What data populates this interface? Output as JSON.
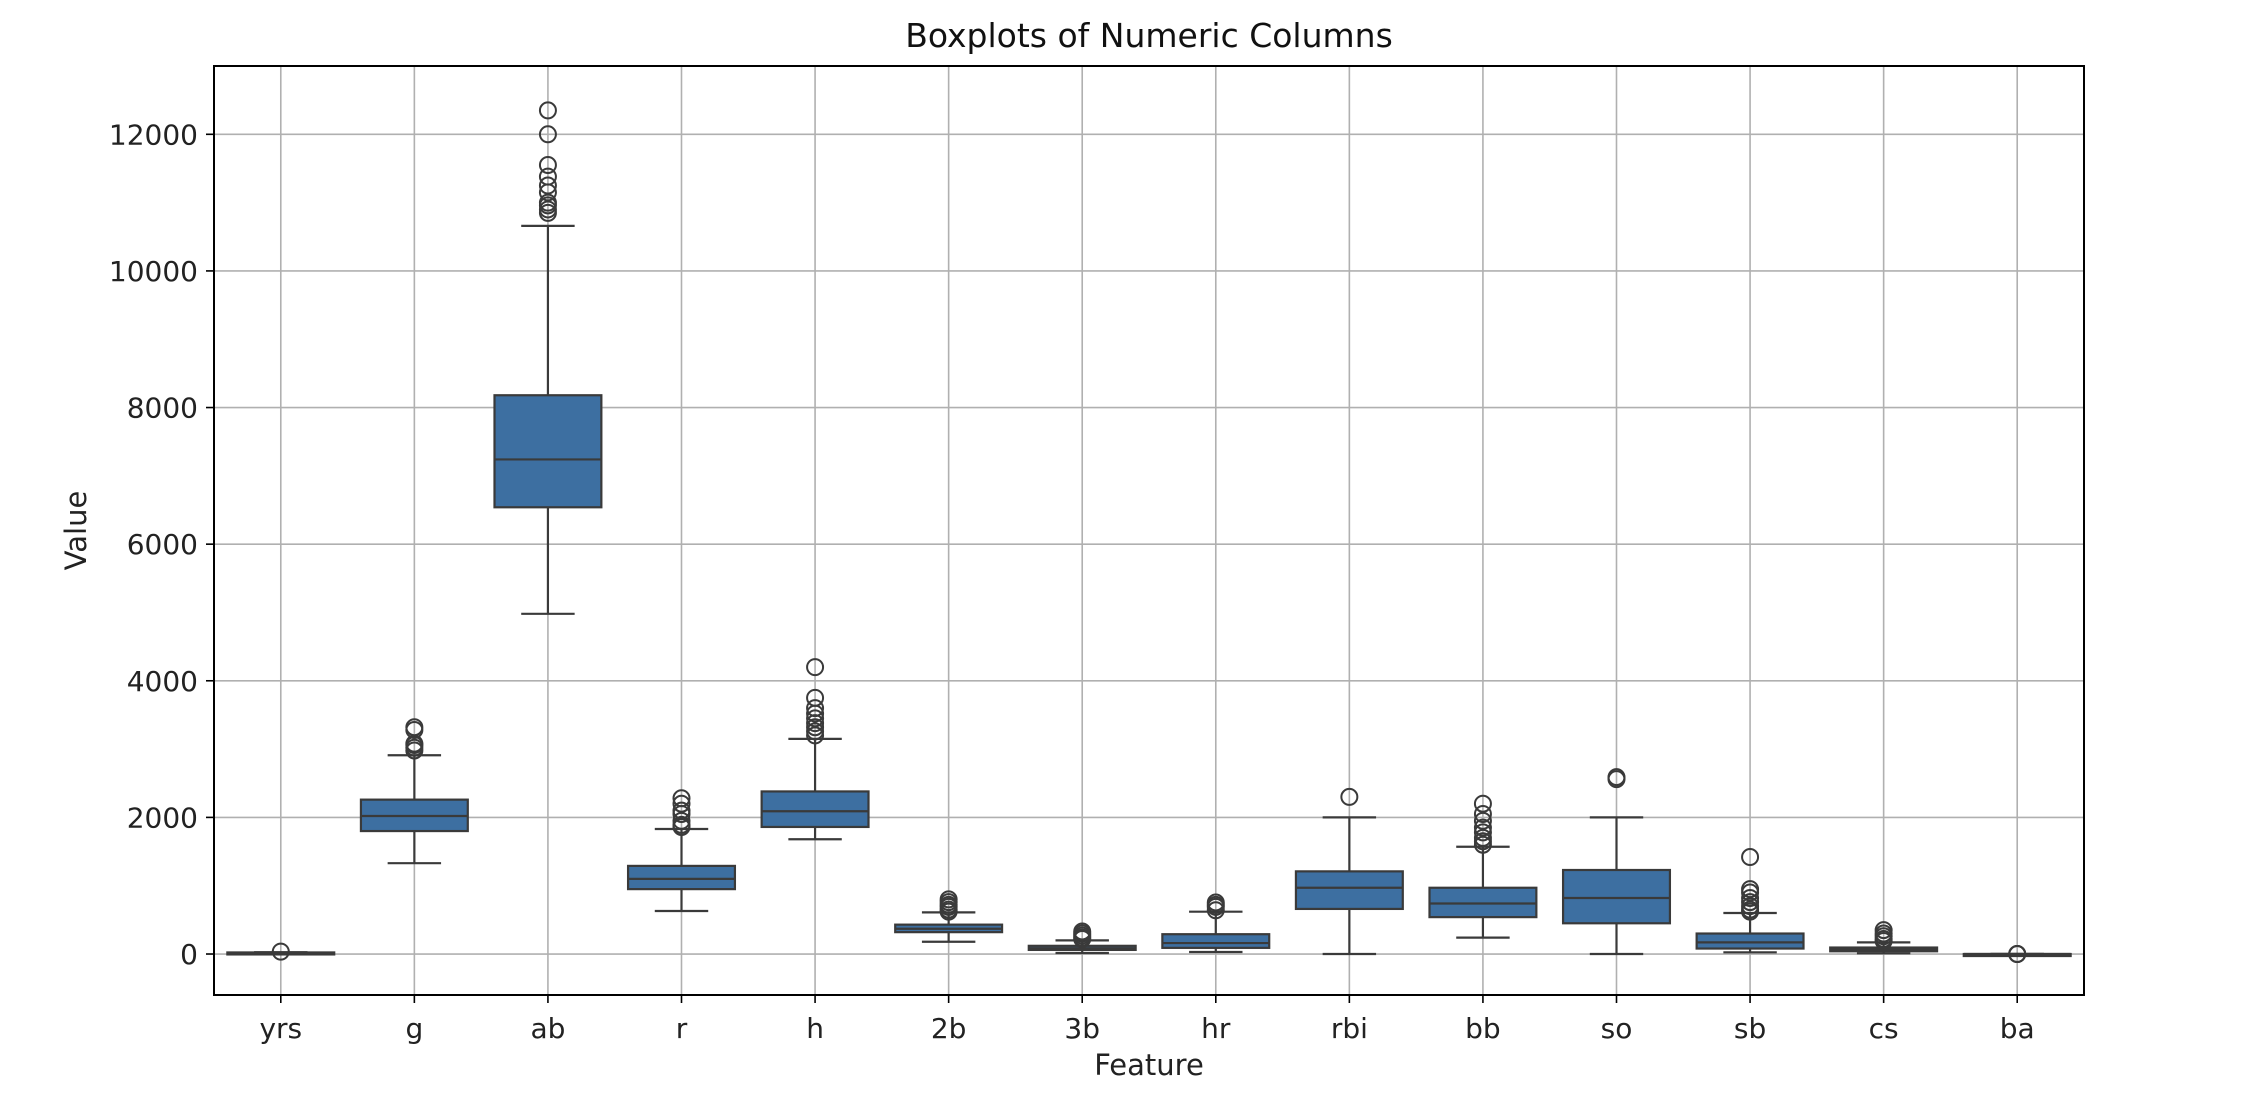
{
  "chart_data": {
    "type": "boxplot",
    "title": "Boxplots of Numeric Columns",
    "xlabel": "Feature",
    "ylabel": "Value",
    "ylim": [
      -600,
      13000
    ],
    "yticks": [
      0,
      2000,
      4000,
      6000,
      8000,
      10000,
      12000
    ],
    "yticklabels": [
      "0",
      "2000",
      "4000",
      "6000",
      "8000",
      "10000",
      "12000"
    ],
    "grid": true,
    "box_color": "#3d6fa1",
    "edge_color": "#3a3a3a",
    "categories": [
      "yrs",
      "g",
      "ab",
      "r",
      "h",
      "2b",
      "3b",
      "hr",
      "rbi",
      "bb",
      "so",
      "sb",
      "cs",
      "ba"
    ],
    "boxes": [
      {
        "category": "yrs",
        "whisker_low": 15,
        "q1": 18,
        "median": 20,
        "q3": 23,
        "whisker_high": 27,
        "outliers": [
          35
        ]
      },
      {
        "category": "g",
        "whisker_low": 1330,
        "q1": 1800,
        "median": 2020,
        "q3": 2260,
        "whisker_high": 2910,
        "outliers": [
          2980,
          3020,
          3060,
          3080,
          3280,
          3320
        ]
      },
      {
        "category": "ab",
        "whisker_low": 4980,
        "q1": 6540,
        "median": 7240,
        "q3": 8180,
        "whisker_high": 10660,
        "outliers": [
          10850,
          10900,
          10960,
          11000,
          11150,
          11250,
          11380,
          11550,
          12000,
          12350
        ]
      },
      {
        "category": "r",
        "whisker_low": 630,
        "q1": 950,
        "median": 1100,
        "q3": 1290,
        "whisker_high": 1830,
        "outliers": [
          1860,
          1890,
          1950,
          2050,
          2100,
          2200,
          2280
        ]
      },
      {
        "category": "h",
        "whisker_low": 1680,
        "q1": 1860,
        "median": 2090,
        "q3": 2380,
        "whisker_high": 3150,
        "outliers": [
          3200,
          3260,
          3320,
          3380,
          3450,
          3520,
          3600,
          3750,
          4200
        ]
      },
      {
        "category": "2b",
        "whisker_low": 180,
        "q1": 320,
        "median": 370,
        "q3": 430,
        "whisker_high": 610,
        "outliers": [
          620,
          650,
          690,
          720,
          760,
          800
        ]
      },
      {
        "category": "3b",
        "whisker_low": 15,
        "q1": 60,
        "median": 85,
        "q3": 120,
        "whisker_high": 200,
        "outliers": [
          220,
          240,
          270,
          300,
          330
        ]
      },
      {
        "category": "hr",
        "whisker_low": 30,
        "q1": 90,
        "median": 160,
        "q3": 290,
        "whisker_high": 620,
        "outliers": [
          640,
          690,
          720,
          755
        ]
      },
      {
        "category": "rbi",
        "whisker_low": 0,
        "q1": 660,
        "median": 970,
        "q3": 1210,
        "whisker_high": 2000,
        "outliers": [
          2300
        ]
      },
      {
        "category": "bb",
        "whisker_low": 240,
        "q1": 540,
        "median": 740,
        "q3": 970,
        "whisker_high": 1570,
        "outliers": [
          1600,
          1650,
          1700,
          1780,
          1850,
          1950,
          2050,
          2200
        ]
      },
      {
        "category": "so",
        "whisker_low": 0,
        "q1": 450,
        "median": 820,
        "q3": 1230,
        "whisker_high": 2000,
        "outliers": [
          2560,
          2590
        ]
      },
      {
        "category": "sb",
        "whisker_low": 25,
        "q1": 80,
        "median": 170,
        "q3": 300,
        "whisker_high": 600,
        "outliers": [
          620,
          650,
          700,
          760,
          820,
          900,
          950,
          1420
        ]
      },
      {
        "category": "cs",
        "whisker_low": 10,
        "q1": 40,
        "median": 65,
        "q3": 95,
        "whisker_high": 170,
        "outliers": [
          190,
          220,
          260,
          300,
          350
        ]
      },
      {
        "category": "ba",
        "whisker_low": 0,
        "q1": 0,
        "median": 0,
        "q3": 0,
        "whisker_high": 0,
        "outliers": [
          0,
          0,
          0
        ]
      }
    ]
  }
}
